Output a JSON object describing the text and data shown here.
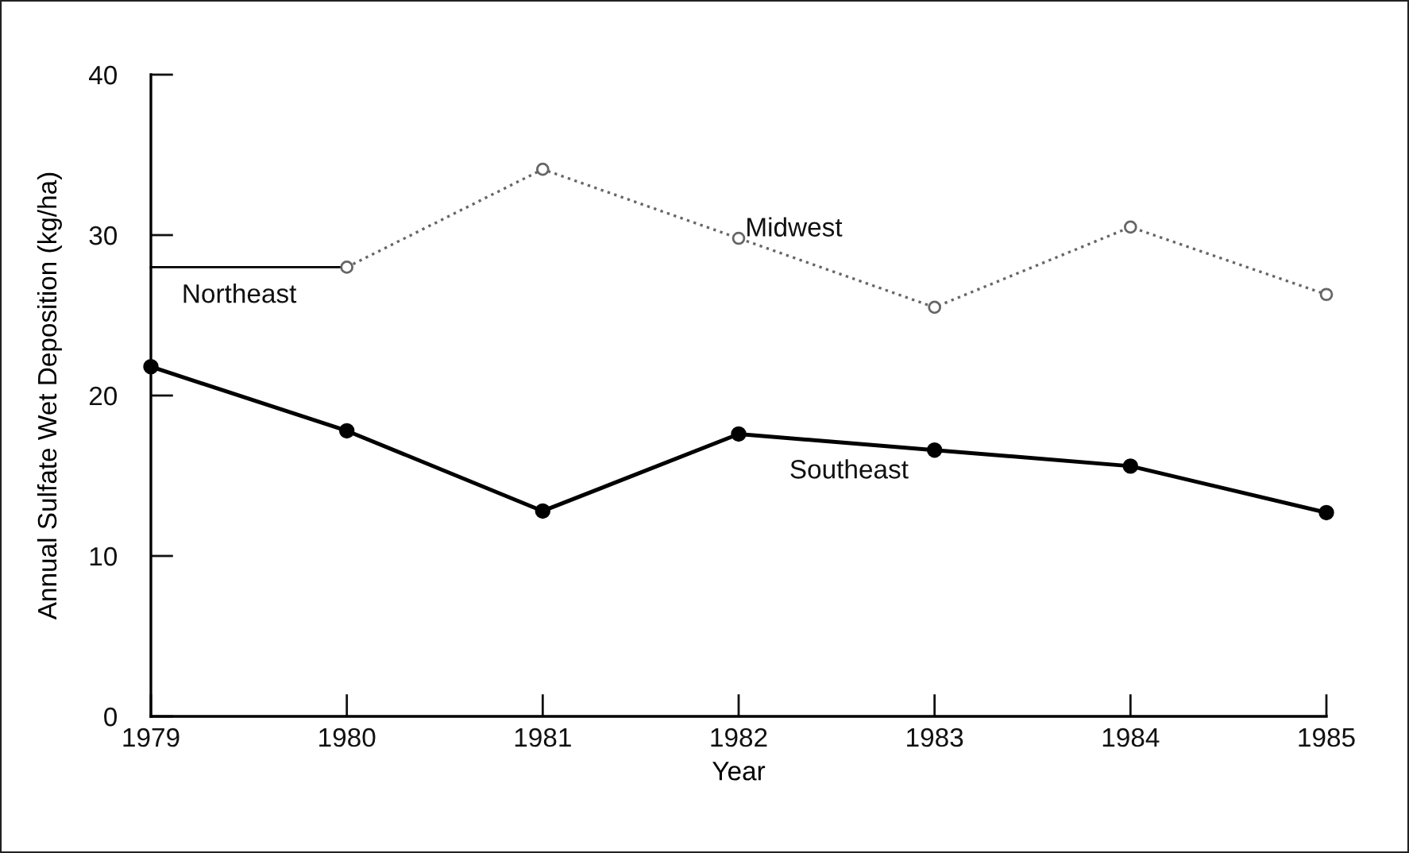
{
  "chart_data": {
    "type": "line",
    "xlabel": "Year",
    "ylabel": "Annual Sulfate Wet Deposition (kg/ha)",
    "x": [
      1979,
      1980,
      1981,
      1982,
      1983,
      1984,
      1985
    ],
    "xlim": [
      1979,
      1985
    ],
    "xticks": [
      1979,
      1980,
      1981,
      1982,
      1983,
      1984,
      1985
    ],
    "ylim": [
      0,
      40
    ],
    "yticks": [
      0,
      10,
      20,
      30,
      40
    ],
    "grid": false,
    "legend": false,
    "series": [
      {
        "name": "Northeast",
        "color": "#000000",
        "values": [
          28,
          28,
          null,
          null,
          null,
          null,
          null
        ],
        "marker": "none",
        "line_style": "solid"
      },
      {
        "name": "Midwest",
        "color": "#666666",
        "values": [
          null,
          28,
          34.1,
          29.8,
          25.5,
          30.5,
          26.3
        ],
        "marker": "circle",
        "line_style": "dotted"
      },
      {
        "name": "Southeast",
        "color": "#000000",
        "values": [
          21.8,
          17.8,
          12.8,
          17.6,
          16.6,
          15.6,
          12.7
        ],
        "marker": "circle",
        "line_style": "solid"
      }
    ]
  }
}
